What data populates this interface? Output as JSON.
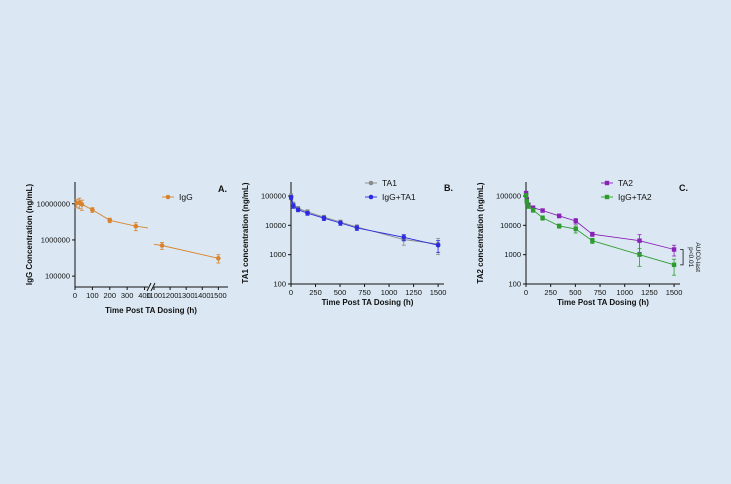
{
  "chart_data": [
    {
      "panel": "A.",
      "type": "line",
      "ylabel": "IgG Concentration (ng/mL)",
      "xlabel": "Time Post TA Dosing (h)",
      "yscale": "log",
      "ylim": [
        50000,
        40000000
      ],
      "y_ticks": [
        100000,
        1000000,
        10000000
      ],
      "y_tick_labels": [
        "100000",
        "1000000",
        "10000000"
      ],
      "x_break": true,
      "x_segment1": {
        "xlim": [
          0,
          420
        ],
        "ticks": [
          0,
          100,
          200,
          300,
          400
        ],
        "tick_labels": [
          "0",
          "100",
          "200",
          "300",
          "400"
        ]
      },
      "x_segment2": {
        "xlim": [
          1100,
          1560
        ],
        "ticks": [
          1100,
          1200,
          1300,
          1400,
          1500
        ],
        "tick_labels": [
          "1100",
          "1200",
          "1300",
          "1400",
          "1500"
        ]
      },
      "color": "#d9822b",
      "legend_position": "top-right",
      "series": [
        {
          "name": "IgG",
          "x": [
            10,
            25,
            40,
            100,
            200,
            350,
            1150,
            1500
          ],
          "y": [
            10500000,
            10800000,
            9600000,
            6800000,
            3500000,
            2400000,
            700000,
            310000
          ],
          "err": [
            2500000,
            3500000,
            3000000,
            1000000,
            500000,
            600000,
            150000,
            80000
          ]
        }
      ]
    },
    {
      "panel": "B.",
      "type": "line",
      "ylabel": "TA1 concentration (ng/mL)",
      "xlabel": "Time Post TA Dosing (h)",
      "yscale": "log",
      "ylim": [
        100,
        300000
      ],
      "y_ticks": [
        100,
        1000,
        10000,
        100000
      ],
      "y_tick_labels": [
        "100",
        "1000",
        "10000",
        "100000"
      ],
      "xlim": [
        0,
        1560
      ],
      "x_ticks": [
        0,
        250,
        500,
        750,
        1000,
        1250,
        1500
      ],
      "x_tick_labels": [
        "0",
        "250",
        "500",
        "750",
        "1000",
        "1250",
        "1500"
      ],
      "legend_position": "top-right",
      "series": [
        {
          "name": "TA1",
          "color": "#8a8a8a",
          "x": [
            1,
            24,
            72,
            168,
            336,
            504,
            672,
            1150,
            1500
          ],
          "y": [
            100000,
            52000,
            38000,
            29000,
            19000,
            13000,
            8800,
            3300,
            2300
          ],
          "err": [
            20000,
            10000,
            6000,
            5000,
            3000,
            2000,
            1600,
            1200,
            1300
          ]
        },
        {
          "name": "IgG+TA1",
          "color": "#2b2be0",
          "x": [
            1,
            24,
            72,
            168,
            336,
            504,
            672,
            1150,
            1500
          ],
          "y": [
            90000,
            46000,
            34000,
            26000,
            17500,
            12000,
            8200,
            3900,
            2100
          ],
          "err": [
            15000,
            8000,
            5000,
            4000,
            3000,
            2000,
            1500,
            900,
            900
          ]
        }
      ]
    },
    {
      "panel": "C.",
      "type": "line",
      "ylabel": "TA2 concentration (ng/mL)",
      "xlabel": "Time Post TA Dosing (h)",
      "yscale": "log",
      "ylim": [
        100,
        300000
      ],
      "y_ticks": [
        100,
        1000,
        10000,
        100000
      ],
      "y_tick_labels": [
        "100",
        "1000",
        "10000",
        "100000"
      ],
      "xlim": [
        0,
        1560
      ],
      "x_ticks": [
        0,
        250,
        500,
        750,
        1000,
        1250,
        1500
      ],
      "x_tick_labels": [
        "0",
        "250",
        "500",
        "750",
        "1000",
        "1250",
        "1500"
      ],
      "legend_position": "top-right",
      "annotation": {
        "lines": [
          "p<0.01",
          "AUC0-last"
        ]
      },
      "series": [
        {
          "name": "TA2",
          "color": "#8a22b8",
          "x": [
            1,
            8,
            24,
            72,
            168,
            336,
            504,
            672,
            1150,
            1500
          ],
          "y": [
            125000,
            78000,
            50000,
            40000,
            32000,
            21000,
            14000,
            5000,
            3000,
            1500
          ],
          "err": [
            20000,
            12000,
            8000,
            6000,
            4000,
            3000,
            3000,
            800,
            1800,
            600
          ]
        },
        {
          "name": "IgG+TA2",
          "color": "#2e9b2e",
          "x": [
            1,
            8,
            24,
            72,
            168,
            336,
            504,
            672,
            1150,
            1500
          ],
          "y": [
            105000,
            65000,
            44000,
            33000,
            18000,
            9500,
            7500,
            3000,
            1000,
            450
          ],
          "err": [
            15000,
            10000,
            6000,
            5000,
            3000,
            1500,
            2000,
            600,
            600,
            250
          ]
        }
      ]
    }
  ]
}
